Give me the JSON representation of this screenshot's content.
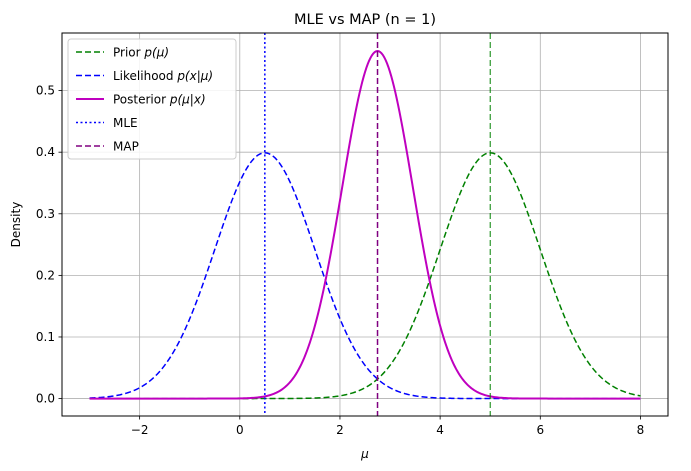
{
  "chart_data": {
    "type": "line",
    "title": "MLE vs MAP (n = 1)",
    "xlabel": "μ",
    "ylabel": "Density",
    "xlim": [
      -3.55,
      8.55
    ],
    "ylim": [
      -0.0283,
      0.5935
    ],
    "xticks": [
      -2,
      0,
      2,
      4,
      6,
      8
    ],
    "yticks": [
      0.0,
      0.1,
      0.2,
      0.3,
      0.4,
      0.5
    ],
    "ytick_labels": [
      "0.0",
      "0.1",
      "0.2",
      "0.3",
      "0.4",
      "0.5"
    ],
    "grid": true,
    "legend_position": "upper-left",
    "x_range": [
      -3,
      8
    ],
    "series": [
      {
        "name": "Prior p(μ)",
        "label_main": "Prior ",
        "label_math": "p(μ)",
        "kind": "normal",
        "mean": 5.0,
        "std": 1.0,
        "color": "#008000",
        "style": "dashed",
        "width": 1.5
      },
      {
        "name": "Likelihood p(x|μ)",
        "label_main": "Likelihood ",
        "label_math": "p(x|μ)",
        "kind": "normal",
        "mean": 0.5,
        "std": 1.0,
        "color": "#0000ff",
        "style": "dashed",
        "width": 1.5
      },
      {
        "name": "Posterior p(μ|x)",
        "label_main": "Posterior ",
        "label_math": "p(μ|x)",
        "kind": "normal",
        "mean": 2.75,
        "std": 0.7071,
        "color": "#bf00bf",
        "style": "solid",
        "width": 2
      }
    ],
    "vlines": [
      {
        "name": "MLE",
        "label_main": "MLE",
        "label_math": "",
        "x": 0.5,
        "color": "#0000ff",
        "style": "dotted",
        "width": 1.5
      },
      {
        "name": "MAP",
        "label_main": "MAP",
        "label_math": "",
        "x": 2.75,
        "color": "#800080",
        "style": "dashed",
        "width": 1.5
      },
      {
        "name": "",
        "x": 5.0,
        "color": "#008000",
        "style": "dashed",
        "width": 1,
        "in_legend": false
      }
    ]
  }
}
